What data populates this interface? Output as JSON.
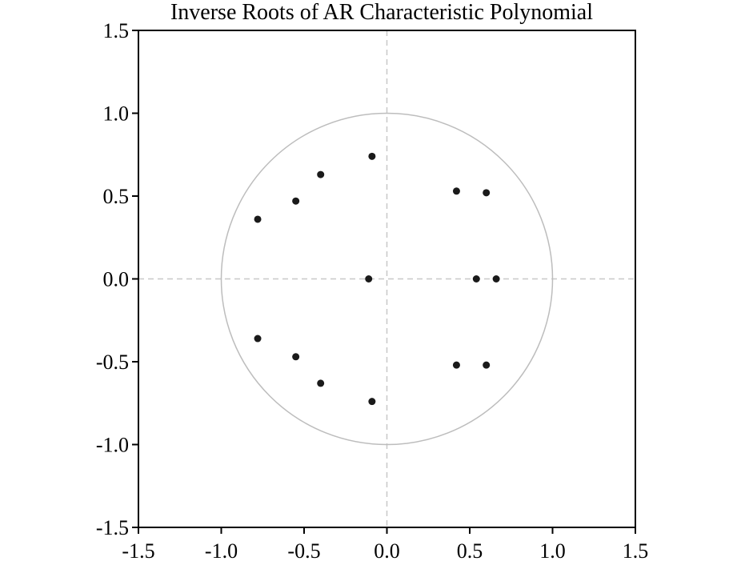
{
  "chart_data": {
    "type": "scatter",
    "title": "Inverse Roots of AR Characteristic Polynomial",
    "xlabel": "",
    "ylabel": "",
    "xlim": [
      -1.5,
      1.5
    ],
    "ylim": [
      -1.5,
      1.5
    ],
    "x_ticks": [
      "-1.5",
      "-1.0",
      "-0.5",
      "0.0",
      "0.5",
      "1.0",
      "1.5"
    ],
    "y_ticks": [
      "1.5",
      "1.0",
      "0.5",
      "0.0",
      "-0.5",
      "-1.0",
      "-1.5"
    ],
    "unit_circle": {
      "center": [
        0,
        0
      ],
      "radius": 1.0
    },
    "reference_lines": {
      "x": 0,
      "y": 0,
      "style": "dashed"
    },
    "grid": false,
    "points": [
      {
        "x": -0.09,
        "y": 0.74
      },
      {
        "x": -0.4,
        "y": 0.63
      },
      {
        "x": -0.55,
        "y": 0.47
      },
      {
        "x": -0.78,
        "y": 0.36
      },
      {
        "x": -0.11,
        "y": 0.0
      },
      {
        "x": -0.78,
        "y": -0.36
      },
      {
        "x": -0.55,
        "y": -0.47
      },
      {
        "x": -0.4,
        "y": -0.63
      },
      {
        "x": -0.09,
        "y": -0.74
      },
      {
        "x": 0.42,
        "y": 0.53
      },
      {
        "x": 0.6,
        "y": 0.52
      },
      {
        "x": 0.54,
        "y": 0.0
      },
      {
        "x": 0.66,
        "y": 0.0
      },
      {
        "x": 0.42,
        "y": -0.52
      },
      {
        "x": 0.6,
        "y": -0.52
      }
    ],
    "colors": {
      "points": "#1a1a1a",
      "circle": "#bdbdbd",
      "reference_lines": "#c8c8c8",
      "frame": "#000000"
    }
  }
}
